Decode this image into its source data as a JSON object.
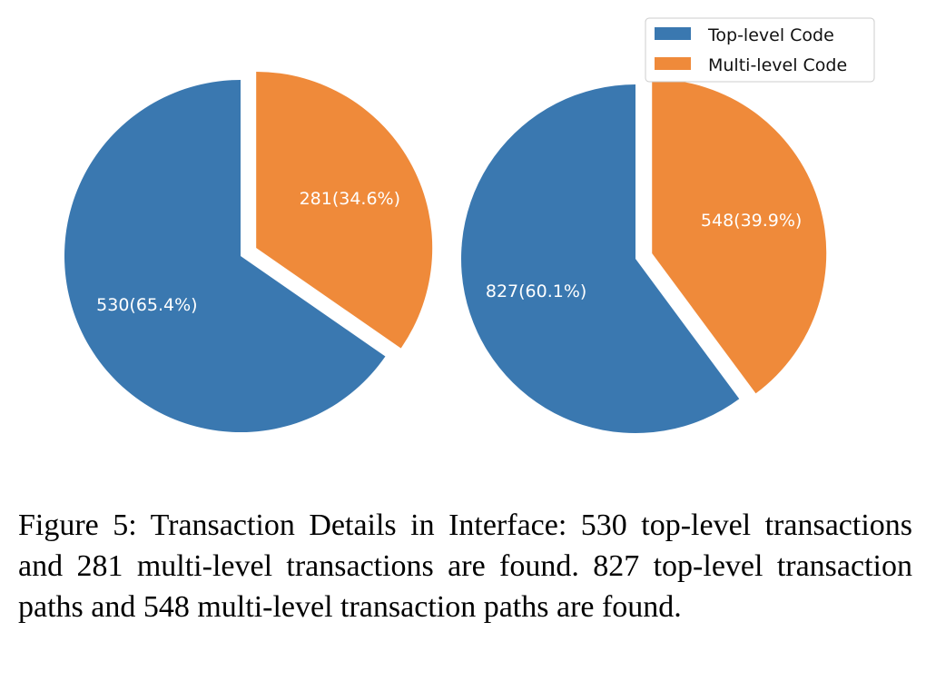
{
  "chart_data": [
    {
      "type": "pie",
      "categories": [
        "Top-level Code",
        "Multi-level Code"
      ],
      "values": [
        530,
        281
      ],
      "labels": [
        "530(65.4%)",
        "281(34.6%)"
      ],
      "explode": [
        0,
        0.1
      ],
      "start_angle_deg": 90,
      "direction": "counterclockwise"
    },
    {
      "type": "pie",
      "categories": [
        "Top-level Code",
        "Multi-level Code"
      ],
      "values": [
        827,
        548
      ],
      "labels": [
        "827(60.1%)",
        "548(39.9%)"
      ],
      "explode": [
        0,
        0.1
      ],
      "start_angle_deg": 90,
      "direction": "counterclockwise"
    }
  ],
  "legend": {
    "placement": "top-right",
    "items": [
      {
        "label": "Top-level Code",
        "color": "#3a78b0"
      },
      {
        "label": "Multi-level Code",
        "color": "#ef8a3a"
      }
    ]
  },
  "colors": {
    "top_level": "#3a78b0",
    "multi_level": "#ef8a3a"
  },
  "caption": "Figure 5: Transaction Details in Interface: 530 top-level transactions and 281 multi-level transactions are found. 827 top-level transaction paths and 548 multi-level transaction paths are found."
}
